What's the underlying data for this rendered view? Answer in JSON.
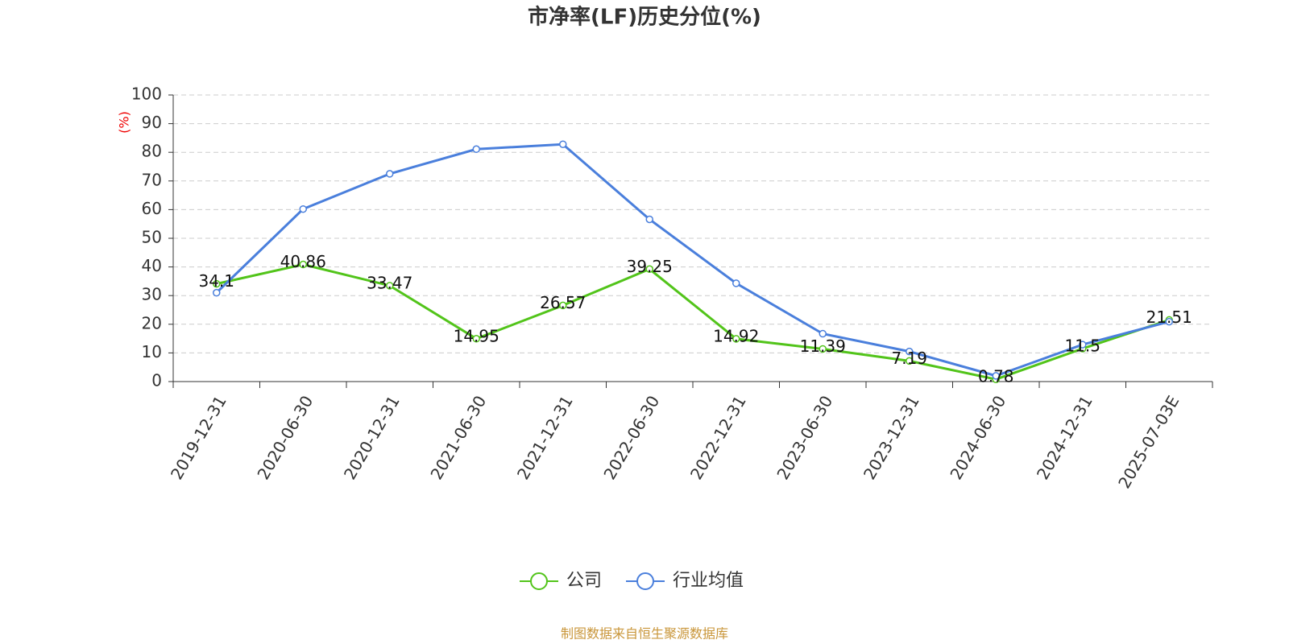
{
  "chart_data": {
    "type": "line",
    "title": "市净率(LF)历史分位(%)",
    "y_label": "(%)",
    "categories": [
      "2019-12-31",
      "2020-06-30",
      "2020-12-31",
      "2021-06-30",
      "2021-12-31",
      "2022-06-30",
      "2022-12-31",
      "2023-06-30",
      "2023-12-31",
      "2024-06-30",
      "2024-12-31",
      "2025-07-03E"
    ],
    "series": [
      {
        "name": "公司",
        "color": "#52c41a",
        "values": [
          34.1,
          40.86,
          33.47,
          14.95,
          26.57,
          39.25,
          14.92,
          11.39,
          7.19,
          0.78,
          11.5,
          21.51
        ],
        "labels": true
      },
      {
        "name": "行业均值",
        "color": "#4a7fdc",
        "values": [
          31,
          60.2,
          72.5,
          81.1,
          82.8,
          56.6,
          34.3,
          16.7,
          10.5,
          2,
          12.9,
          20.9
        ],
        "labels": false
      }
    ],
    "ylim": [
      0,
      100
    ],
    "yticks": [
      0,
      10,
      20,
      30,
      40,
      50,
      60,
      70,
      80,
      90,
      100
    ],
    "grid": true,
    "source": "制图数据来自恒生聚源数据库"
  }
}
